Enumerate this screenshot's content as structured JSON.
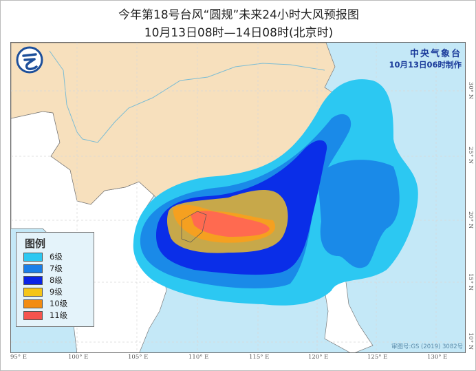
{
  "title": "今年第18号台风“圆规”未来24小时大风预报图",
  "subtitle": "10月13日08时—14日08时(北京时)",
  "issuer": {
    "name": "中央气象台",
    "made_at": "10月13日06时制作"
  },
  "legend": {
    "title": "图例",
    "items": [
      {
        "label": "6级",
        "color": "#2cc8f2"
      },
      {
        "label": "7级",
        "color": "#1a7fe8"
      },
      {
        "label": "8级",
        "color": "#0a24e6"
      },
      {
        "label": "9级",
        "color": "#f5c518"
      },
      {
        "label": "10级",
        "color": "#f28c12"
      },
      {
        "label": "11级",
        "color": "#f5544e"
      }
    ]
  },
  "longitude_labels": [
    "95° E",
    "100° E",
    "105° E",
    "110° E",
    "115° E",
    "120° E",
    "125° E",
    "130° E"
  ],
  "latitude_labels": [
    "30° N",
    "25° N",
    "20° N",
    "15° N",
    "10° N"
  ],
  "approval_number": "审图号:GS (2019) 3082号",
  "colors": {
    "land_china": "#f7e0bd",
    "land_other": "#ffffff",
    "sea": "#c4e8f7",
    "zone_9_fill": "#c7a84a"
  }
}
